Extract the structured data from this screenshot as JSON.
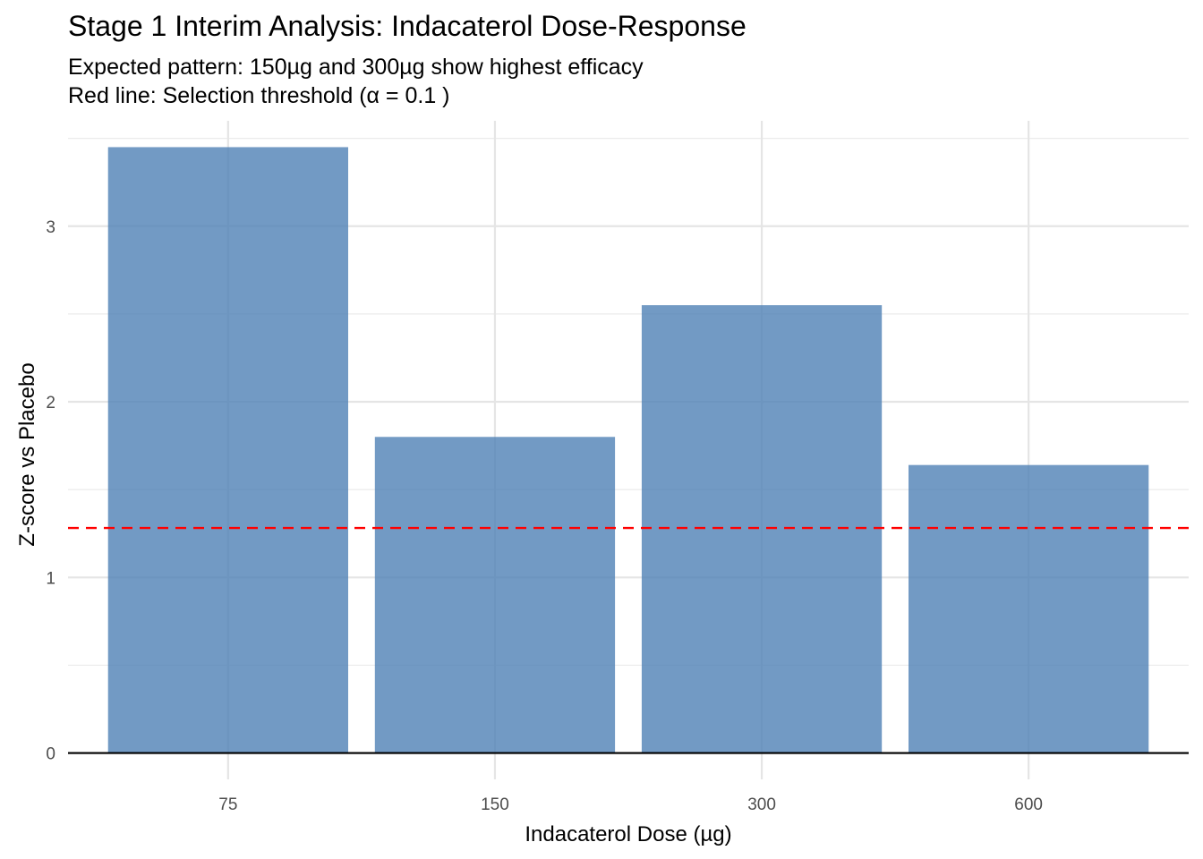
{
  "chart_data": {
    "type": "bar",
    "title": "Stage 1 Interim Analysis: Indacaterol Dose-Response",
    "subtitle_lines": [
      "Expected pattern: 150µg and 300µg show highest efficacy",
      "Red line: Selection threshold (α = 0.1 )"
    ],
    "xlabel": "Indacaterol Dose (µg)",
    "ylabel": "Z-score vs Placebo",
    "categories": [
      "75",
      "150",
      "300",
      "600"
    ],
    "values": [
      3.45,
      1.8,
      2.55,
      1.64
    ],
    "ylim": [
      -0.15,
      3.6
    ],
    "yticks": [
      "0",
      "1",
      "2",
      "3"
    ],
    "threshold": {
      "value": 1.2816,
      "color": "#ff0000",
      "style": "dashed"
    },
    "bar_color": "#4f81b5",
    "bar_opacity": 0.8,
    "grid": true,
    "legend": "none"
  }
}
